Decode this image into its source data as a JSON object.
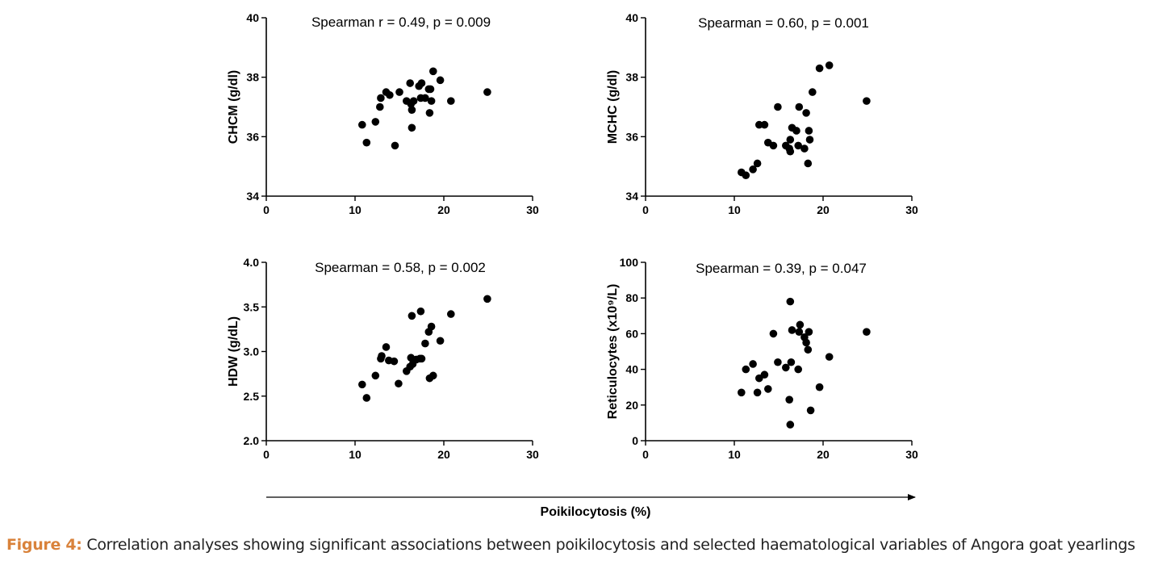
{
  "figure": {
    "caption_label": "Figure 4:",
    "caption_text": "Correlation analyses showing significant associations between poikilocytosis and selected haematological variables of Angora goat yearlings",
    "shared_xlabel": "Poikilocytosis (%)",
    "colors": {
      "points": "#000000",
      "axes": "#000000",
      "caption_label": "#d9823b"
    }
  },
  "chart_data": [
    {
      "type": "scatter",
      "title": "Spearman r = 0.49, p = 0.009",
      "ylabel": "CHCM (g/dl)",
      "xlim": [
        0,
        30
      ],
      "ylim": [
        34,
        40
      ],
      "xticks": [
        0,
        10,
        20,
        30
      ],
      "xtick_labels": [
        "0",
        "10",
        "20",
        "30"
      ],
      "yticks": [
        34,
        36,
        38,
        40
      ],
      "ytick_labels": [
        "34",
        "36",
        "38",
        "40"
      ],
      "points": [
        [
          10.8,
          36.4
        ],
        [
          11.3,
          35.8
        ],
        [
          12.3,
          36.5
        ],
        [
          12.8,
          37.0
        ],
        [
          12.9,
          37.3
        ],
        [
          13.5,
          37.5
        ],
        [
          13.9,
          37.4
        ],
        [
          14.5,
          35.7
        ],
        [
          15.0,
          37.5
        ],
        [
          15.8,
          37.2
        ],
        [
          16.2,
          37.8
        ],
        [
          16.3,
          37.1
        ],
        [
          16.4,
          36.9
        ],
        [
          16.4,
          36.3
        ],
        [
          16.6,
          37.2
        ],
        [
          17.2,
          37.7
        ],
        [
          17.4,
          37.3
        ],
        [
          17.5,
          37.8
        ],
        [
          17.9,
          37.3
        ],
        [
          18.3,
          37.6
        ],
        [
          18.4,
          36.8
        ],
        [
          18.5,
          37.6
        ],
        [
          18.6,
          37.2
        ],
        [
          18.8,
          38.2
        ],
        [
          19.6,
          37.9
        ],
        [
          20.8,
          37.2
        ],
        [
          24.9,
          37.5
        ]
      ]
    },
    {
      "type": "scatter",
      "title": "Spearman = 0.60, p = 0.001",
      "ylabel": "MCHC (g/dl)",
      "xlim": [
        0,
        30
      ],
      "ylim": [
        34,
        40
      ],
      "xticks": [
        0,
        10,
        20,
        30
      ],
      "xtick_labels": [
        "0",
        "10",
        "20",
        "30"
      ],
      "yticks": [
        34,
        36,
        38,
        40
      ],
      "ytick_labels": [
        "34",
        "36",
        "38",
        "40"
      ],
      "points": [
        [
          10.8,
          34.8
        ],
        [
          11.3,
          34.7
        ],
        [
          12.1,
          34.9
        ],
        [
          12.6,
          35.1
        ],
        [
          12.8,
          36.4
        ],
        [
          13.4,
          36.4
        ],
        [
          13.8,
          35.8
        ],
        [
          14.4,
          35.7
        ],
        [
          14.9,
          37.0
        ],
        [
          15.8,
          35.7
        ],
        [
          16.2,
          35.6
        ],
        [
          16.3,
          35.9
        ],
        [
          16.3,
          35.5
        ],
        [
          16.5,
          36.3
        ],
        [
          17.0,
          36.2
        ],
        [
          17.2,
          35.7
        ],
        [
          17.3,
          37.0
        ],
        [
          17.9,
          35.6
        ],
        [
          18.1,
          36.8
        ],
        [
          18.3,
          35.1
        ],
        [
          18.4,
          36.2
        ],
        [
          18.5,
          35.9
        ],
        [
          18.8,
          37.5
        ],
        [
          19.6,
          38.3
        ],
        [
          20.7,
          38.4
        ],
        [
          24.9,
          37.2
        ]
      ]
    },
    {
      "type": "scatter",
      "title": "Spearman = 0.58, p = 0.002",
      "ylabel": "HDW (g/dL)",
      "xlim": [
        0,
        30
      ],
      "ylim": [
        2.0,
        4.0
      ],
      "xticks": [
        0,
        10,
        20,
        30
      ],
      "xtick_labels": [
        "0",
        "10",
        "20",
        "30"
      ],
      "yticks": [
        2.0,
        2.5,
        3.0,
        3.5,
        4.0
      ],
      "ytick_labels": [
        "2.0",
        "2.5",
        "3.0",
        "3.5",
        "4.0"
      ],
      "points": [
        [
          10.8,
          2.63
        ],
        [
          11.3,
          2.48
        ],
        [
          12.3,
          2.73
        ],
        [
          12.9,
          2.92
        ],
        [
          13.0,
          2.95
        ],
        [
          13.5,
          3.05
        ],
        [
          13.8,
          2.9
        ],
        [
          14.4,
          2.89
        ],
        [
          14.9,
          2.64
        ],
        [
          15.8,
          2.78
        ],
        [
          16.2,
          2.83
        ],
        [
          16.3,
          2.93
        ],
        [
          16.4,
          3.4
        ],
        [
          16.5,
          2.86
        ],
        [
          16.9,
          2.91
        ],
        [
          17.3,
          2.92
        ],
        [
          17.4,
          3.45
        ],
        [
          17.5,
          2.92
        ],
        [
          17.9,
          3.09
        ],
        [
          18.3,
          3.22
        ],
        [
          18.4,
          2.7
        ],
        [
          18.6,
          3.28
        ],
        [
          18.8,
          2.73
        ],
        [
          19.6,
          3.12
        ],
        [
          20.8,
          3.42
        ],
        [
          24.9,
          3.59
        ]
      ]
    },
    {
      "type": "scatter",
      "title": "Spearman = 0.39, p = 0.047",
      "ylabel": "Reticulocytes (x10⁹/L)",
      "xlim": [
        0,
        30
      ],
      "ylim": [
        0,
        100
      ],
      "xticks": [
        0,
        10,
        20,
        30
      ],
      "xtick_labels": [
        "0",
        "10",
        "20",
        "30"
      ],
      "yticks": [
        0,
        20,
        40,
        60,
        80,
        100
      ],
      "ytick_labels": [
        "0",
        "20",
        "40",
        "60",
        "80",
        "100"
      ],
      "points": [
        [
          10.8,
          27
        ],
        [
          11.3,
          40
        ],
        [
          12.1,
          43
        ],
        [
          12.6,
          27
        ],
        [
          12.8,
          35
        ],
        [
          13.4,
          37
        ],
        [
          13.8,
          29
        ],
        [
          14.4,
          60
        ],
        [
          14.9,
          44
        ],
        [
          15.8,
          41
        ],
        [
          16.2,
          23
        ],
        [
          16.3,
          9
        ],
        [
          16.3,
          78
        ],
        [
          16.4,
          44
        ],
        [
          16.5,
          62
        ],
        [
          17.2,
          40
        ],
        [
          17.3,
          61
        ],
        [
          17.4,
          65
        ],
        [
          17.9,
          58
        ],
        [
          18.1,
          55
        ],
        [
          18.3,
          51
        ],
        [
          18.4,
          61
        ],
        [
          18.6,
          17
        ],
        [
          19.6,
          30
        ],
        [
          20.7,
          47
        ],
        [
          24.9,
          61
        ]
      ]
    }
  ]
}
